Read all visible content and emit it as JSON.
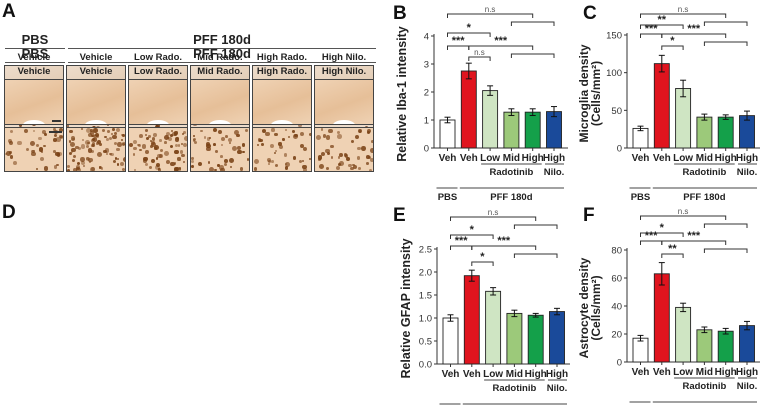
{
  "figure": {
    "panels": {
      "A": {
        "letter": "A"
      },
      "B": {
        "letter": "B"
      },
      "C": {
        "letter": "C"
      },
      "D": {
        "letter": "D"
      },
      "E": {
        "letter": "E"
      },
      "F": {
        "letter": "F"
      }
    },
    "micrograph_headers": {
      "pbs": "PBS",
      "pff": "PFF 180d",
      "columns": [
        "Vehicle",
        "Vehicle",
        "Low Rado.",
        "Mid Rado.",
        "High Rado.",
        "High Nilo."
      ]
    },
    "colors": {
      "pbs_veh": "#ffffff",
      "pff_veh": "#e0141e",
      "low_rado": "#cfe5c3",
      "mid_rado": "#9cc97a",
      "high_rado": "#14a04a",
      "high_nilo": "#1a4a9a",
      "iba_tissue": "#eddccb",
      "gfap_tissue": "#efd2b4"
    },
    "x_labels": {
      "groups": [
        "Veh",
        "Veh",
        "Low",
        "Mid",
        "High",
        "High"
      ],
      "radotinib": "Radotinib",
      "nilo": "Nilo.",
      "pbs": "PBS",
      "pff": "PFF 180d"
    }
  },
  "chart_data": [
    {
      "panel": "B",
      "type": "bar",
      "title": "",
      "ylabel": "Relative Iba-1 intensity",
      "xlabel": "",
      "categories": [
        "PBS Veh",
        "PFF Veh",
        "PFF Low Radotinib",
        "PFF Mid Radotinib",
        "PFF High Radotinib",
        "PFF High Nilotinib"
      ],
      "values": [
        1.0,
        2.75,
        2.05,
        1.28,
        1.28,
        1.3
      ],
      "errors": [
        0.1,
        0.28,
        0.17,
        0.12,
        0.12,
        0.18
      ],
      "ylim": [
        0,
        4
      ],
      "yticks": [
        "0",
        "1",
        "2",
        "3",
        "4"
      ],
      "grid": false,
      "significance": [
        {
          "from": 0,
          "to": 1,
          "label": "***"
        },
        {
          "from": 0,
          "to": 2,
          "label": "*"
        },
        {
          "from": 0,
          "to": "3-5",
          "label": "n.s"
        },
        {
          "from": 1,
          "to": 2,
          "label": "n.s"
        },
        {
          "from": 1,
          "to": "3-5",
          "label": "***"
        }
      ]
    },
    {
      "panel": "C",
      "type": "bar",
      "title": "",
      "ylabel": "Microglia density (Cells/mm²)",
      "xlabel": "",
      "categories": [
        "PBS Veh",
        "PFF Veh",
        "PFF Low Radotinib",
        "PFF Mid Radotinib",
        "PFF High Radotinib",
        "PFF High Nilotinib"
      ],
      "values": [
        26,
        112,
        79,
        41,
        41,
        43
      ],
      "errors": [
        3,
        11,
        11,
        4,
        3,
        6
      ],
      "ylim": [
        0,
        150
      ],
      "yticks": [
        "0",
        "50",
        "100",
        "150"
      ],
      "grid": false,
      "significance": [
        {
          "from": 0,
          "to": 1,
          "label": "***"
        },
        {
          "from": 0,
          "to": 2,
          "label": "**"
        },
        {
          "from": 0,
          "to": "3-5",
          "label": "n.s"
        },
        {
          "from": 1,
          "to": 2,
          "label": "*"
        },
        {
          "from": 1,
          "to": "3-5",
          "label": "***"
        }
      ]
    },
    {
      "panel": "E",
      "type": "bar",
      "title": "",
      "ylabel": "Relative GFAP intensity",
      "xlabel": "",
      "categories": [
        "PBS Veh",
        "PFF Veh",
        "PFF Low Radotinib",
        "PFF Mid Radotinib",
        "PFF High Radotinib",
        "PFF High Nilotinib"
      ],
      "values": [
        1.0,
        1.92,
        1.58,
        1.1,
        1.06,
        1.14
      ],
      "errors": [
        0.07,
        0.12,
        0.08,
        0.07,
        0.04,
        0.07
      ],
      "ylim": [
        0,
        2.5
      ],
      "yticks": [
        "0.0",
        "0.5",
        "1.0",
        "1.5",
        "2.0",
        "2.5"
      ],
      "grid": false,
      "significance": [
        {
          "from": 0,
          "to": 1,
          "label": "***"
        },
        {
          "from": 0,
          "to": 2,
          "label": "*"
        },
        {
          "from": 0,
          "to": "3-5",
          "label": "n.s"
        },
        {
          "from": 1,
          "to": 2,
          "label": "*"
        },
        {
          "from": 1,
          "to": "3-5",
          "label": "***"
        }
      ]
    },
    {
      "panel": "F",
      "type": "bar",
      "title": "",
      "ylabel": "Astrocyte density (Cells/mm²)",
      "xlabel": "",
      "categories": [
        "PBS Veh",
        "PFF Veh",
        "PFF Low Radotinib",
        "PFF Mid Radotinib",
        "PFF High Radotinib",
        "PFF High Nilotinib"
      ],
      "values": [
        17,
        63,
        39,
        23,
        22,
        26
      ],
      "errors": [
        2,
        8,
        3,
        2,
        2,
        3
      ],
      "ylim": [
        0,
        80
      ],
      "yticks": [
        "0",
        "20",
        "40",
        "60",
        "80"
      ],
      "grid": false,
      "significance": [
        {
          "from": 0,
          "to": 1,
          "label": "***"
        },
        {
          "from": 0,
          "to": 2,
          "label": "*"
        },
        {
          "from": 0,
          "to": "3-5",
          "label": "n.s"
        },
        {
          "from": 1,
          "to": 2,
          "label": "**"
        },
        {
          "from": 1,
          "to": "3-5",
          "label": "***"
        }
      ]
    }
  ]
}
